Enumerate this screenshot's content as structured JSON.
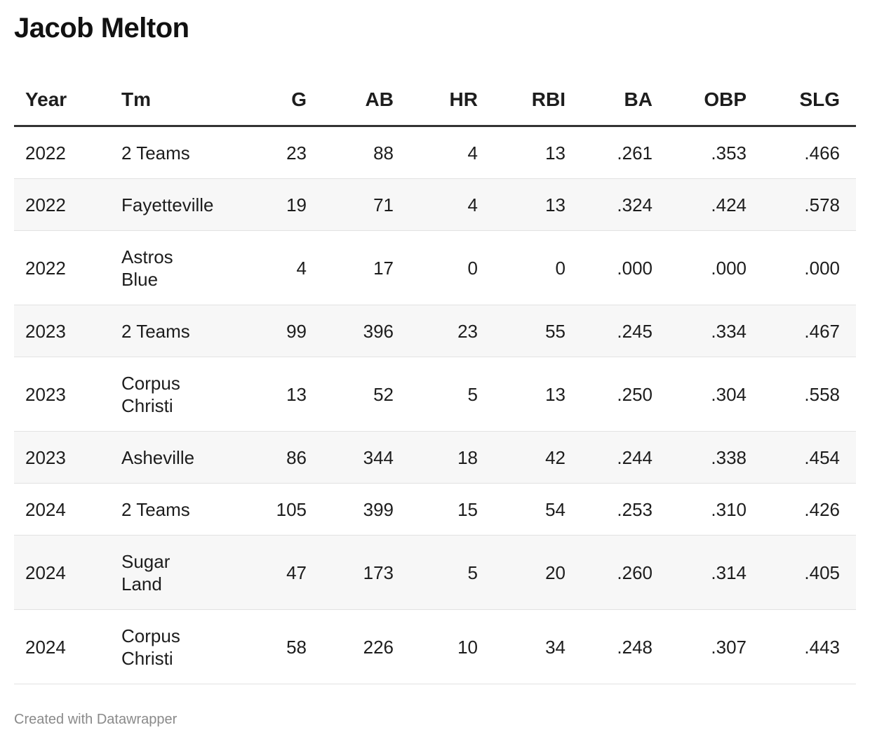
{
  "title": "Jacob Melton",
  "table": {
    "columns": [
      "Year",
      "Tm",
      "G",
      "AB",
      "HR",
      "RBI",
      "BA",
      "OBP",
      "SLG"
    ],
    "rows": [
      [
        2022,
        "2 Teams",
        23,
        88,
        4,
        13,
        ".261",
        ".353",
        ".466"
      ],
      [
        2022,
        "Fayetteville",
        19,
        71,
        4,
        13,
        ".324",
        ".424",
        ".578"
      ],
      [
        2022,
        "Astros Blue",
        4,
        17,
        0,
        0,
        ".000",
        ".000",
        ".000"
      ],
      [
        2023,
        "2 Teams",
        99,
        396,
        23,
        55,
        ".245",
        ".334",
        ".467"
      ],
      [
        2023,
        "Corpus Christi",
        13,
        52,
        5,
        13,
        ".250",
        ".304",
        ".558"
      ],
      [
        2023,
        "Asheville",
        86,
        344,
        18,
        42,
        ".244",
        ".338",
        ".454"
      ],
      [
        2024,
        "2 Teams",
        105,
        399,
        15,
        54,
        ".253",
        ".310",
        ".426"
      ],
      [
        2024,
        "Sugar Land",
        47,
        173,
        5,
        20,
        ".260",
        ".314",
        ".405"
      ],
      [
        2024,
        "Corpus Christi",
        58,
        226,
        10,
        34,
        ".248",
        ".307",
        ".443"
      ]
    ]
  },
  "footer": "Created with Datawrapper"
}
